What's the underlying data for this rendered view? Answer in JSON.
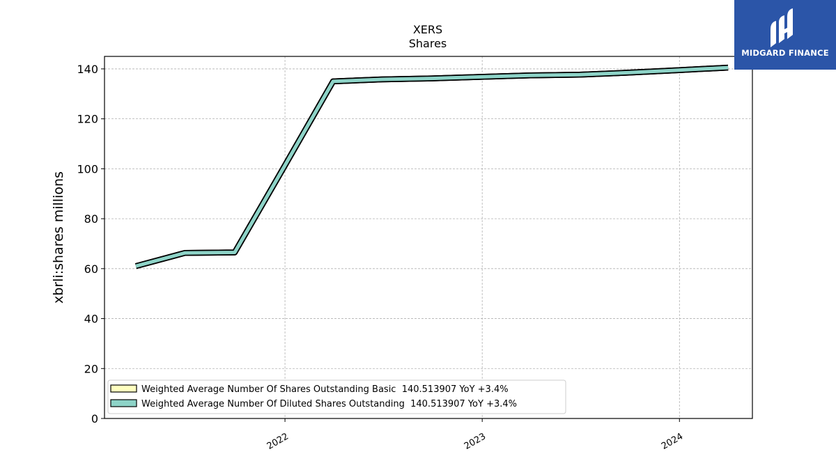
{
  "chart_data": {
    "type": "line",
    "title": "XERS",
    "subtitle": "Shares",
    "ylabel": "xbrli:shares millions",
    "xlabel": "",
    "ylim": [
      0,
      145
    ],
    "xlim": [
      "2021-02-01",
      "2024-05-15"
    ],
    "yticks": [
      0,
      20,
      40,
      60,
      80,
      100,
      120,
      140
    ],
    "xticks": [
      "2022",
      "2023",
      "2024"
    ],
    "xtick_dates": [
      "2022-01-01",
      "2023-01-01",
      "2024-01-01"
    ],
    "grid": true,
    "legend_position": "lower-left",
    "series": [
      {
        "name": "Weighted Average Number Of Shares Outstanding Basic  140.513907 YoY +3.4%",
        "color": "#ffffbf",
        "x": [
          "2021-03-31",
          "2021-06-30",
          "2021-09-30",
          "2021-12-31",
          "2022-03-31",
          "2022-06-30",
          "2022-09-30",
          "2022-12-31",
          "2023-03-31",
          "2023-06-30",
          "2023-09-30",
          "2023-12-31",
          "2024-03-31"
        ],
        "values": [
          61.0,
          66.3,
          66.5,
          101.0,
          135.0,
          135.8,
          136.2,
          136.8,
          137.4,
          137.7,
          138.5,
          139.5,
          140.5
        ]
      },
      {
        "name": "Weighted Average Number Of Diluted Shares Outstanding  140.513907 YoY +3.4%",
        "color": "#8dd3c7",
        "x": [
          "2021-03-31",
          "2021-06-30",
          "2021-09-30",
          "2021-12-31",
          "2022-03-31",
          "2022-06-30",
          "2022-09-30",
          "2022-12-31",
          "2023-03-31",
          "2023-06-30",
          "2023-09-30",
          "2023-12-31",
          "2024-03-31"
        ],
        "values": [
          61.0,
          66.3,
          66.5,
          101.0,
          135.0,
          135.8,
          136.2,
          136.8,
          137.4,
          137.7,
          138.5,
          139.5,
          140.5
        ]
      }
    ]
  },
  "logo": {
    "text": "MIDGARD FINANCE",
    "background": "#2b55a8"
  }
}
